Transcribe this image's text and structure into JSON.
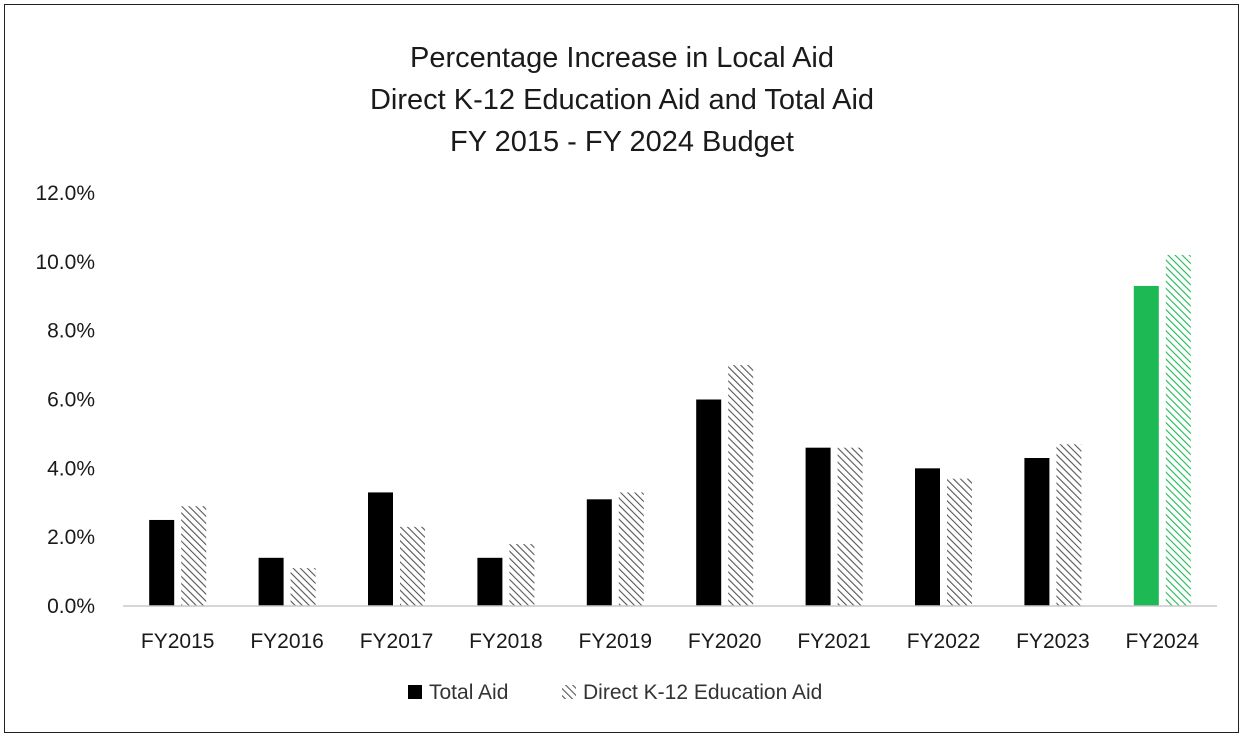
{
  "chart_data": {
    "type": "bar",
    "title_lines": [
      "Percentage Increase in Local Aid",
      "Direct K-12 Education Aid and Total Aid",
      "FY 2015 - FY 2024 Budget"
    ],
    "categories": [
      "FY2015",
      "FY2016",
      "FY2017",
      "FY2018",
      "FY2019",
      "FY2020",
      "FY2021",
      "FY2022",
      "FY2023",
      "FY2024"
    ],
    "series": [
      {
        "name": "Total Aid",
        "values": [
          2.5,
          1.4,
          3.3,
          1.4,
          3.1,
          6.0,
          4.6,
          4.0,
          4.3,
          9.3
        ],
        "color": "#000000",
        "pattern": "solid"
      },
      {
        "name": "Direct K-12 Education Aid",
        "values": [
          2.9,
          1.1,
          2.3,
          1.8,
          3.3,
          7.0,
          4.6,
          3.7,
          4.7,
          10.2
        ],
        "color": "#555555",
        "pattern": "diagonal-hatch"
      }
    ],
    "highlight": {
      "category": "FY2024",
      "color": "#1db954"
    },
    "y_ticks": [
      "0.0%",
      "2.0%",
      "4.0%",
      "6.0%",
      "8.0%",
      "10.0%",
      "12.0%"
    ],
    "ylim": [
      0,
      12
    ],
    "y_unit": "%",
    "xlabel": "",
    "ylabel": "",
    "grid": false,
    "legend_position": "bottom"
  }
}
